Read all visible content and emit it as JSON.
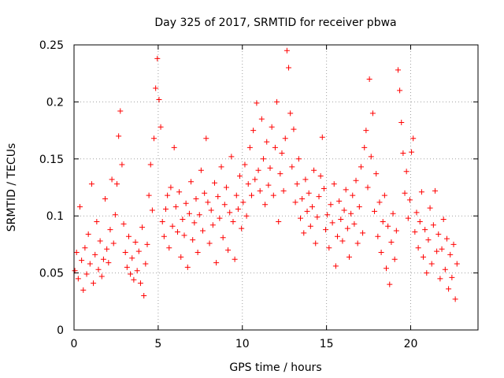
{
  "chart_data": {
    "type": "scatter",
    "title": "Day 325 of 2017, SRMTID for receiver pbwa",
    "xlabel": "GPS time / hours",
    "ylabel": "SRMTID / TECUs",
    "xlim": [
      0,
      24
    ],
    "ylim": [
      0,
      0.25
    ],
    "x_ticks": [
      0,
      5,
      10,
      15,
      20
    ],
    "x_tick_labels": [
      "0",
      "5",
      "10",
      "15",
      "20"
    ],
    "y_ticks": [
      0,
      0.05,
      0.1,
      0.15,
      0.2,
      0.25
    ],
    "y_tick_labels": [
      "0",
      "0.05",
      "0.1",
      "0.15",
      "0.2",
      "0.25"
    ],
    "grid": true,
    "marker": "+",
    "marker_color": "#ff0000",
    "series": [
      {
        "name": "SRMTID",
        "points": [
          [
            0.05,
            0.052
          ],
          [
            0.15,
            0.068
          ],
          [
            0.25,
            0.045
          ],
          [
            0.35,
            0.108
          ],
          [
            0.45,
            0.061
          ],
          [
            0.55,
            0.035
          ],
          [
            0.65,
            0.072
          ],
          [
            0.75,
            0.049
          ],
          [
            0.85,
            0.084
          ],
          [
            0.95,
            0.058
          ],
          [
            1.05,
            0.128
          ],
          [
            1.15,
            0.041
          ],
          [
            1.25,
            0.066
          ],
          [
            1.35,
            0.095
          ],
          [
            1.45,
            0.053
          ],
          [
            1.55,
            0.078
          ],
          [
            1.65,
            0.047
          ],
          [
            1.75,
            0.062
          ],
          [
            1.85,
            0.115
          ],
          [
            1.95,
            0.071
          ],
          [
            2.05,
            0.059
          ],
          [
            2.15,
            0.088
          ],
          [
            2.25,
            0.132
          ],
          [
            2.35,
            0.076
          ],
          [
            2.45,
            0.101
          ],
          [
            2.55,
            0.128
          ],
          [
            2.65,
            0.17
          ],
          [
            2.75,
            0.192
          ],
          [
            2.85,
            0.145
          ],
          [
            2.95,
            0.093
          ],
          [
            3.05,
            0.068
          ],
          [
            3.15,
            0.055
          ],
          [
            3.25,
            0.082
          ],
          [
            3.35,
            0.049
          ],
          [
            3.45,
            0.063
          ],
          [
            3.55,
            0.044
          ],
          [
            3.65,
            0.077
          ],
          [
            3.75,
            0.052
          ],
          [
            3.85,
            0.069
          ],
          [
            3.95,
            0.041
          ],
          [
            4.05,
            0.09
          ],
          [
            4.15,
            0.03
          ],
          [
            4.25,
            0.058
          ],
          [
            4.35,
            0.075
          ],
          [
            4.45,
            0.118
          ],
          [
            4.55,
            0.145
          ],
          [
            4.65,
            0.105
          ],
          [
            4.75,
            0.168
          ],
          [
            4.85,
            0.212
          ],
          [
            4.95,
            0.238
          ],
          [
            5.05,
            0.202
          ],
          [
            5.15,
            0.178
          ],
          [
            5.25,
            0.095
          ],
          [
            5.35,
            0.082
          ],
          [
            5.45,
            0.106
          ],
          [
            5.55,
            0.118
          ],
          [
            5.65,
            0.072
          ],
          [
            5.75,
            0.125
          ],
          [
            5.85,
            0.091
          ],
          [
            5.95,
            0.16
          ],
          [
            6.05,
            0.108
          ],
          [
            6.15,
            0.086
          ],
          [
            6.25,
            0.121
          ],
          [
            6.35,
            0.064
          ],
          [
            6.45,
            0.097
          ],
          [
            6.55,
            0.083
          ],
          [
            6.65,
            0.111
          ],
          [
            6.75,
            0.055
          ],
          [
            6.85,
            0.102
          ],
          [
            6.95,
            0.13
          ],
          [
            7.05,
            0.079
          ],
          [
            7.15,
            0.094
          ],
          [
            7.25,
            0.115
          ],
          [
            7.35,
            0.068
          ],
          [
            7.45,
            0.101
          ],
          [
            7.55,
            0.14
          ],
          [
            7.65,
            0.087
          ],
          [
            7.75,
            0.12
          ],
          [
            7.85,
            0.168
          ],
          [
            7.95,
            0.112
          ],
          [
            8.05,
            0.076
          ],
          [
            8.15,
            0.105
          ],
          [
            8.25,
            0.092
          ],
          [
            8.35,
            0.129
          ],
          [
            8.45,
            0.059
          ],
          [
            8.55,
            0.117
          ],
          [
            8.65,
            0.098
          ],
          [
            8.75,
            0.143
          ],
          [
            8.85,
            0.081
          ],
          [
            8.95,
            0.11
          ],
          [
            9.05,
            0.125
          ],
          [
            9.15,
            0.07
          ],
          [
            9.25,
            0.103
          ],
          [
            9.35,
            0.152
          ],
          [
            9.45,
            0.095
          ],
          [
            9.55,
            0.062
          ],
          [
            9.65,
            0.118
          ],
          [
            9.75,
            0.106
          ],
          [
            9.85,
            0.135
          ],
          [
            9.95,
            0.089
          ],
          [
            10.05,
            0.112
          ],
          [
            10.15,
            0.145
          ],
          [
            10.25,
            0.1
          ],
          [
            10.35,
            0.128
          ],
          [
            10.45,
            0.16
          ],
          [
            10.55,
            0.118
          ],
          [
            10.65,
            0.175
          ],
          [
            10.75,
            0.132
          ],
          [
            10.85,
            0.199
          ],
          [
            10.95,
            0.14
          ],
          [
            11.05,
            0.122
          ],
          [
            11.15,
            0.185
          ],
          [
            11.25,
            0.15
          ],
          [
            11.35,
            0.11
          ],
          [
            11.45,
            0.165
          ],
          [
            11.55,
            0.127
          ],
          [
            11.65,
            0.142
          ],
          [
            11.75,
            0.178
          ],
          [
            11.85,
            0.118
          ],
          [
            11.95,
            0.16
          ],
          [
            12.05,
            0.2
          ],
          [
            12.15,
            0.095
          ],
          [
            12.25,
            0.137
          ],
          [
            12.35,
            0.155
          ],
          [
            12.45,
            0.122
          ],
          [
            12.55,
            0.168
          ],
          [
            12.65,
            0.245
          ],
          [
            12.75,
            0.23
          ],
          [
            12.85,
            0.19
          ],
          [
            12.95,
            0.143
          ],
          [
            13.05,
            0.176
          ],
          [
            13.15,
            0.112
          ],
          [
            13.25,
            0.128
          ],
          [
            13.35,
            0.15
          ],
          [
            13.45,
            0.098
          ],
          [
            13.55,
            0.115
          ],
          [
            13.65,
            0.085
          ],
          [
            13.75,
            0.132
          ],
          [
            13.85,
            0.104
          ],
          [
            13.95,
            0.12
          ],
          [
            14.05,
            0.091
          ],
          [
            14.15,
            0.108
          ],
          [
            14.25,
            0.14
          ],
          [
            14.35,
            0.076
          ],
          [
            14.45,
            0.099
          ],
          [
            14.55,
            0.117
          ],
          [
            14.65,
            0.135
          ],
          [
            14.75,
            0.169
          ],
          [
            14.85,
            0.124
          ],
          [
            14.95,
            0.088
          ],
          [
            15.05,
            0.101
          ],
          [
            15.15,
            0.072
          ],
          [
            15.25,
            0.11
          ],
          [
            15.35,
            0.094
          ],
          [
            15.45,
            0.128
          ],
          [
            15.55,
            0.056
          ],
          [
            15.65,
            0.082
          ],
          [
            15.75,
            0.113
          ],
          [
            15.85,
            0.097
          ],
          [
            15.95,
            0.078
          ],
          [
            16.05,
            0.105
          ],
          [
            16.15,
            0.123
          ],
          [
            16.25,
            0.089
          ],
          [
            16.35,
            0.064
          ],
          [
            16.45,
            0.102
          ],
          [
            16.55,
            0.118
          ],
          [
            16.65,
            0.093
          ],
          [
            16.75,
            0.131
          ],
          [
            16.85,
            0.076
          ],
          [
            16.95,
            0.108
          ],
          [
            17.05,
            0.143
          ],
          [
            17.15,
            0.085
          ],
          [
            17.25,
            0.16
          ],
          [
            17.35,
            0.175
          ],
          [
            17.45,
            0.125
          ],
          [
            17.55,
            0.22
          ],
          [
            17.65,
            0.152
          ],
          [
            17.75,
            0.19
          ],
          [
            17.85,
            0.104
          ],
          [
            17.95,
            0.137
          ],
          [
            18.05,
            0.082
          ],
          [
            18.15,
            0.112
          ],
          [
            18.25,
            0.068
          ],
          [
            18.35,
            0.095
          ],
          [
            18.45,
            0.118
          ],
          [
            18.55,
            0.054
          ],
          [
            18.65,
            0.091
          ],
          [
            18.75,
            0.04
          ],
          [
            18.85,
            0.077
          ],
          [
            18.95,
            0.102
          ],
          [
            19.05,
            0.062
          ],
          [
            19.15,
            0.087
          ],
          [
            19.25,
            0.228
          ],
          [
            19.35,
            0.21
          ],
          [
            19.45,
            0.182
          ],
          [
            19.55,
            0.155
          ],
          [
            19.65,
            0.12
          ],
          [
            19.75,
            0.139
          ],
          [
            19.85,
            0.098
          ],
          [
            19.95,
            0.114
          ],
          [
            20.05,
            0.156
          ],
          [
            20.15,
            0.168
          ],
          [
            20.25,
            0.086
          ],
          [
            20.35,
            0.103
          ],
          [
            20.45,
            0.072
          ],
          [
            20.55,
            0.095
          ],
          [
            20.65,
            0.121
          ],
          [
            20.75,
            0.064
          ],
          [
            20.85,
            0.088
          ],
          [
            20.95,
            0.05
          ],
          [
            21.05,
            0.079
          ],
          [
            21.15,
            0.107
          ],
          [
            21.25,
            0.058
          ],
          [
            21.35,
            0.092
          ],
          [
            21.45,
            0.122
          ],
          [
            21.55,
            0.069
          ],
          [
            21.65,
            0.084
          ],
          [
            21.75,
            0.045
          ],
          [
            21.85,
            0.071
          ],
          [
            21.95,
            0.097
          ],
          [
            22.05,
            0.053
          ],
          [
            22.15,
            0.08
          ],
          [
            22.25,
            0.036
          ],
          [
            22.35,
            0.066
          ],
          [
            22.45,
            0.046
          ],
          [
            22.55,
            0.075
          ],
          [
            22.65,
            0.027
          ],
          [
            22.75,
            0.058
          ]
        ]
      }
    ]
  }
}
